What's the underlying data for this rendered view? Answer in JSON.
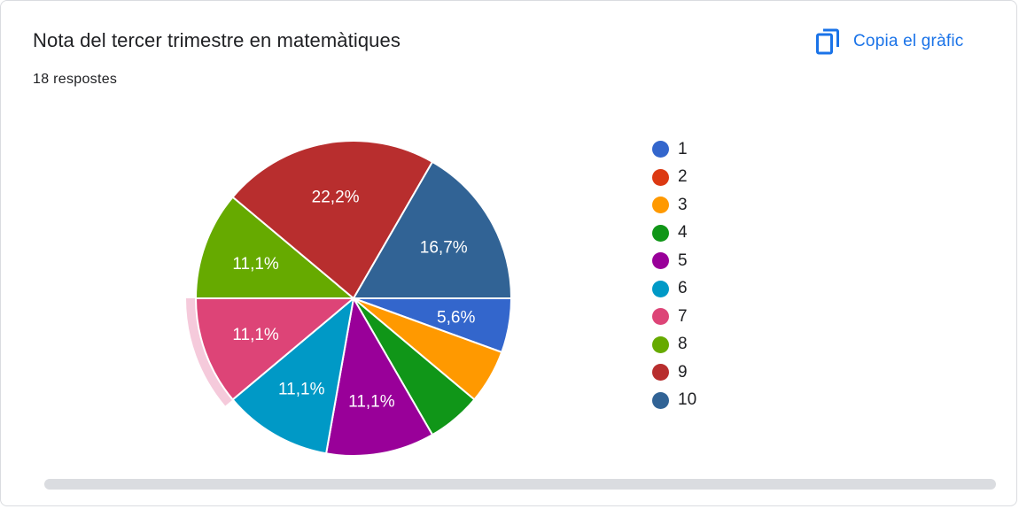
{
  "card": {
    "title": "Nota del tercer trimestre en matemàtiques",
    "responses": "18 respostes",
    "copy_label": "Copia el gràfic",
    "copy_icon": "copy-icon"
  },
  "colors": {
    "accent": "#1a73e8",
    "highlight_ring": "#f5cadb"
  },
  "chart_data": {
    "type": "pie",
    "categories": [
      "1",
      "2",
      "3",
      "4",
      "5",
      "6",
      "7",
      "8",
      "9",
      "10"
    ],
    "values": [
      1,
      0,
      1,
      1,
      2,
      2,
      2,
      2,
      4,
      3
    ],
    "slice_labels": [
      "5,6%",
      "",
      "",
      "",
      "11,1%",
      "11,1%",
      "11,1%",
      "11,1%",
      "22,2%",
      "16,7%"
    ],
    "colors": [
      "#3366cc",
      "#dc3912",
      "#ff9900",
      "#109618",
      "#990099",
      "#0099c6",
      "#dd4477",
      "#66aa00",
      "#b82e2e",
      "#316395"
    ],
    "highlighted": "7",
    "legend_position": "right"
  }
}
